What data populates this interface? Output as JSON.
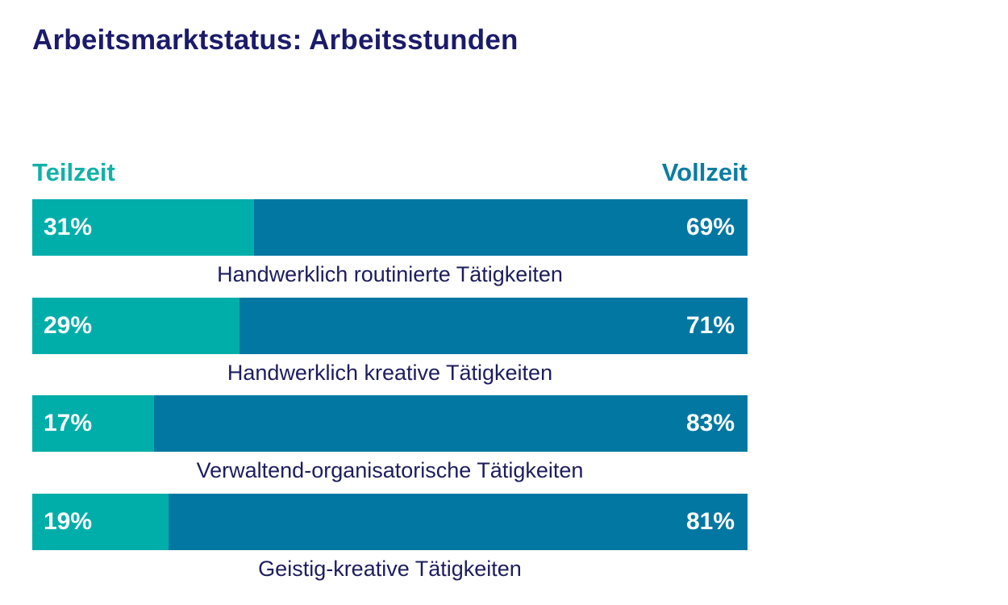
{
  "chart_data": {
    "type": "bar",
    "orientation": "horizontal",
    "stacked": true,
    "percent_stacked": true,
    "title": "Arbeitsmarktstatus: Arbeitsstunden",
    "legend": {
      "left": "Teilzeit",
      "right": "Vollzeit"
    },
    "categories": [
      "Handwerklich routinierte Tätigkeiten",
      "Handwerklich kreative Tätigkeiten",
      "Verwaltend-organisatorische Tätigkeiten",
      "Geistig-kreative Tätigkeiten"
    ],
    "series": [
      {
        "name": "Teilzeit",
        "values": [
          31,
          29,
          17,
          19
        ],
        "color": "#00aea9"
      },
      {
        "name": "Vollzeit",
        "values": [
          69,
          71,
          83,
          81
        ],
        "color": "#0277a2"
      }
    ],
    "value_labels": {
      "Teilzeit": [
        "31%",
        "29%",
        "17%",
        "19%"
      ],
      "Vollzeit": [
        "69%",
        "71%",
        "83%",
        "81%"
      ]
    },
    "xlim": [
      0,
      100
    ],
    "grid": false
  }
}
